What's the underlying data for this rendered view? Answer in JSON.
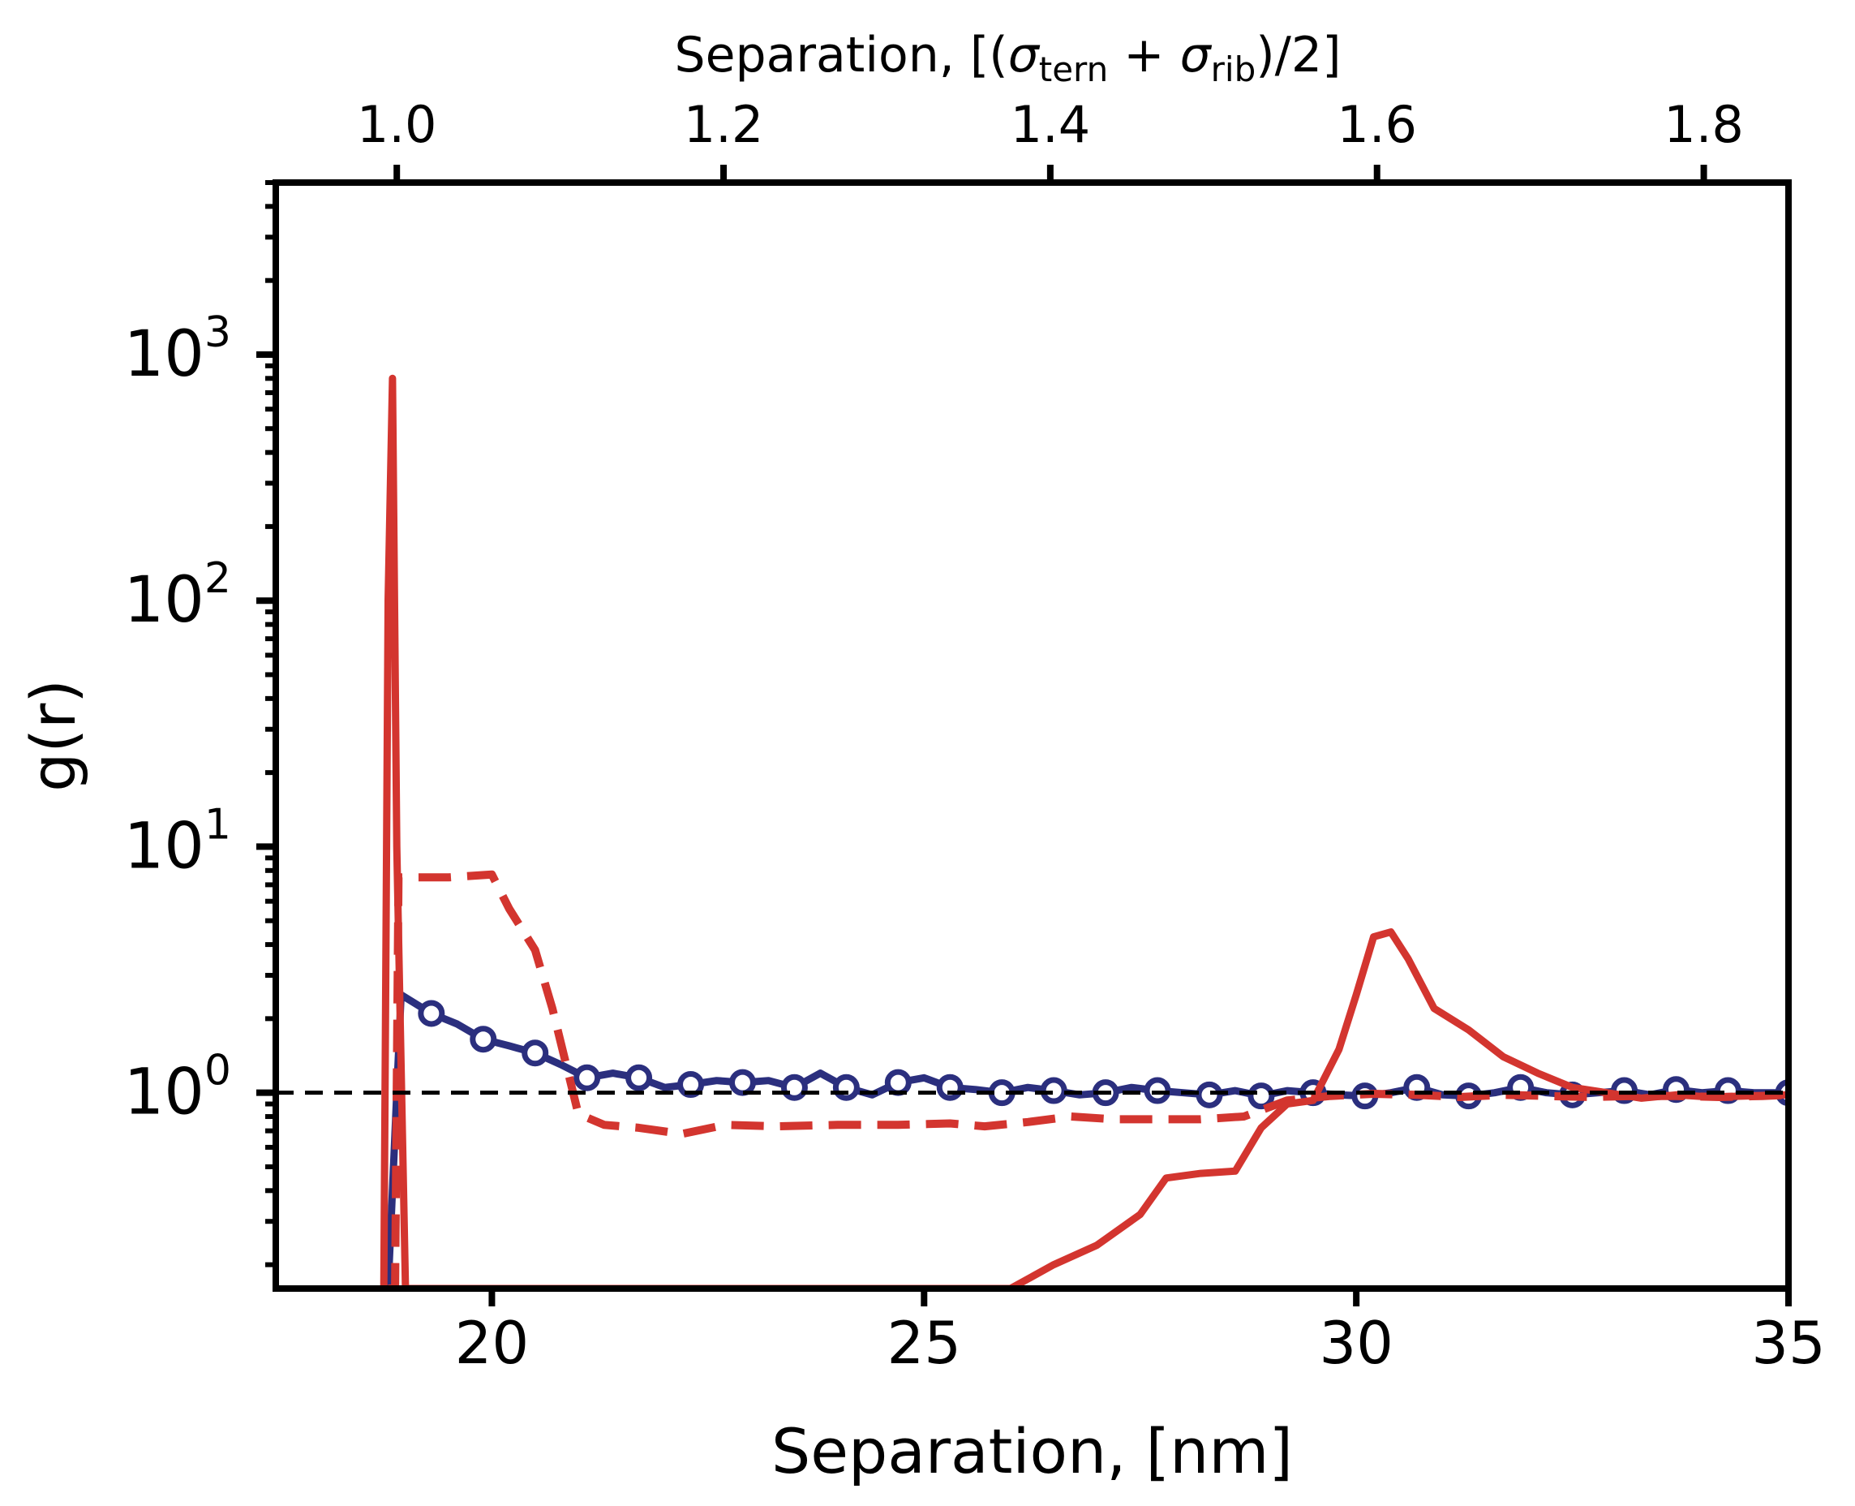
{
  "chart_data": {
    "type": "line",
    "title": "",
    "xlabel": "Separation, [nm]",
    "ylabel": "g(r)",
    "top_xlabel": {
      "prefix": "Separation, [(",
      "sigma": "σ",
      "sub1": "tern",
      "plus": " + ",
      "sub2": "rib",
      "suffix": ")/2]"
    },
    "xlim": [
      17.5,
      35
    ],
    "ylim": [
      0.16,
      5000
    ],
    "yscale": "log",
    "x_ticks": [
      "20",
      "25",
      "30",
      "35"
    ],
    "x_tick_values": [
      20,
      25,
      30,
      35
    ],
    "y_tick_labels": [
      {
        "base": "10",
        "exp": "0",
        "value": 1
      },
      {
        "base": "10",
        "exp": "1",
        "value": 10
      },
      {
        "base": "10",
        "exp": "2",
        "value": 100
      },
      {
        "base": "10",
        "exp": "3",
        "value": 1000
      }
    ],
    "top_x_ticks": [
      "1.0",
      "1.2",
      "1.4",
      "1.6",
      "1.8"
    ],
    "top_x_tick_values_nm": [
      18.9,
      22.68,
      26.46,
      30.24,
      34.02
    ],
    "reference_line": {
      "y": 1.0,
      "style": "dashed",
      "color": "#000000"
    },
    "colors": {
      "blue": "#2b2f7e",
      "red": "#d3352f"
    },
    "series": [
      {
        "style": "solid-with-circles",
        "color": "#2b2f7e",
        "x": [
          18.8,
          18.95,
          19.3,
          19.6,
          19.9,
          20.2,
          20.5,
          20.8,
          21.1,
          21.4,
          21.7,
          22.0,
          22.3,
          22.6,
          22.9,
          23.2,
          23.5,
          23.8,
          24.1,
          24.4,
          24.7,
          25.0,
          25.3,
          25.6,
          25.9,
          26.2,
          26.5,
          26.8,
          27.1,
          27.4,
          27.7,
          28.0,
          28.3,
          28.6,
          28.9,
          29.2,
          29.5,
          29.8,
          30.1,
          30.4,
          30.7,
          31.0,
          31.3,
          31.6,
          31.9,
          32.2,
          32.5,
          32.8,
          33.1,
          33.4,
          33.7,
          34.0,
          34.3,
          34.6,
          35.0
        ],
        "y": [
          0.16,
          2.5,
          2.1,
          1.9,
          1.65,
          1.55,
          1.45,
          1.3,
          1.15,
          1.2,
          1.15,
          1.05,
          1.08,
          1.12,
          1.1,
          1.12,
          1.05,
          1.2,
          1.05,
          0.98,
          1.1,
          1.15,
          1.05,
          1.03,
          1.0,
          1.05,
          1.02,
          0.98,
          1.0,
          1.05,
          1.02,
          1.0,
          0.98,
          1.02,
          0.97,
          1.02,
          1.0,
          0.98,
          0.97,
          1.0,
          1.05,
          0.98,
          0.97,
          1.0,
          1.05,
          1.0,
          0.98,
          1.0,
          1.02,
          0.98,
          1.03,
          1.0,
          1.02,
          1.0,
          1.0
        ]
      },
      {
        "style": "dashed",
        "color": "#d3352f",
        "x": [
          18.8,
          18.88,
          18.92,
          19.5,
          20.0,
          20.2,
          20.5,
          20.7,
          21.0,
          21.3,
          21.7,
          22.2,
          22.7,
          23.3,
          24.0,
          24.7,
          25.3,
          25.7,
          26.2,
          26.7,
          27.2,
          27.7,
          28.2,
          28.7,
          29.2,
          29.7,
          30.2,
          30.7,
          31.2,
          31.7,
          32.2,
          32.7,
          33.2,
          33.7,
          34.2,
          34.7,
          35.0
        ],
        "y": [
          0.16,
          0.16,
          7.5,
          7.5,
          7.7,
          5.6,
          3.8,
          2.2,
          0.82,
          0.74,
          0.72,
          0.68,
          0.74,
          0.73,
          0.74,
          0.74,
          0.75,
          0.73,
          0.76,
          0.8,
          0.78,
          0.78,
          0.78,
          0.8,
          0.93,
          0.97,
          0.99,
          0.98,
          0.96,
          0.98,
          0.97,
          0.96,
          0.97,
          0.97,
          0.96,
          0.97,
          0.98
        ]
      },
      {
        "style": "solid",
        "color": "#d3352f",
        "x": [
          18.75,
          18.8,
          18.85,
          18.9,
          19.0,
          26.0,
          26.5,
          27.0,
          27.5,
          27.8,
          28.2,
          28.6,
          28.9,
          29.2,
          29.5,
          29.8,
          30.0,
          30.2,
          30.4,
          30.6,
          30.9,
          31.3,
          31.7,
          32.1,
          32.5,
          32.9,
          33.3,
          33.7,
          34.1,
          34.5,
          35.0
        ],
        "y": [
          0.16,
          100,
          800,
          10,
          0.16,
          0.16,
          0.2,
          0.24,
          0.32,
          0.45,
          0.47,
          0.48,
          0.72,
          0.9,
          0.93,
          1.5,
          2.5,
          4.3,
          4.5,
          3.5,
          2.2,
          1.8,
          1.4,
          1.2,
          1.05,
          1.0,
          0.95,
          0.98,
          0.96,
          0.97,
          0.98
        ]
      }
    ]
  }
}
